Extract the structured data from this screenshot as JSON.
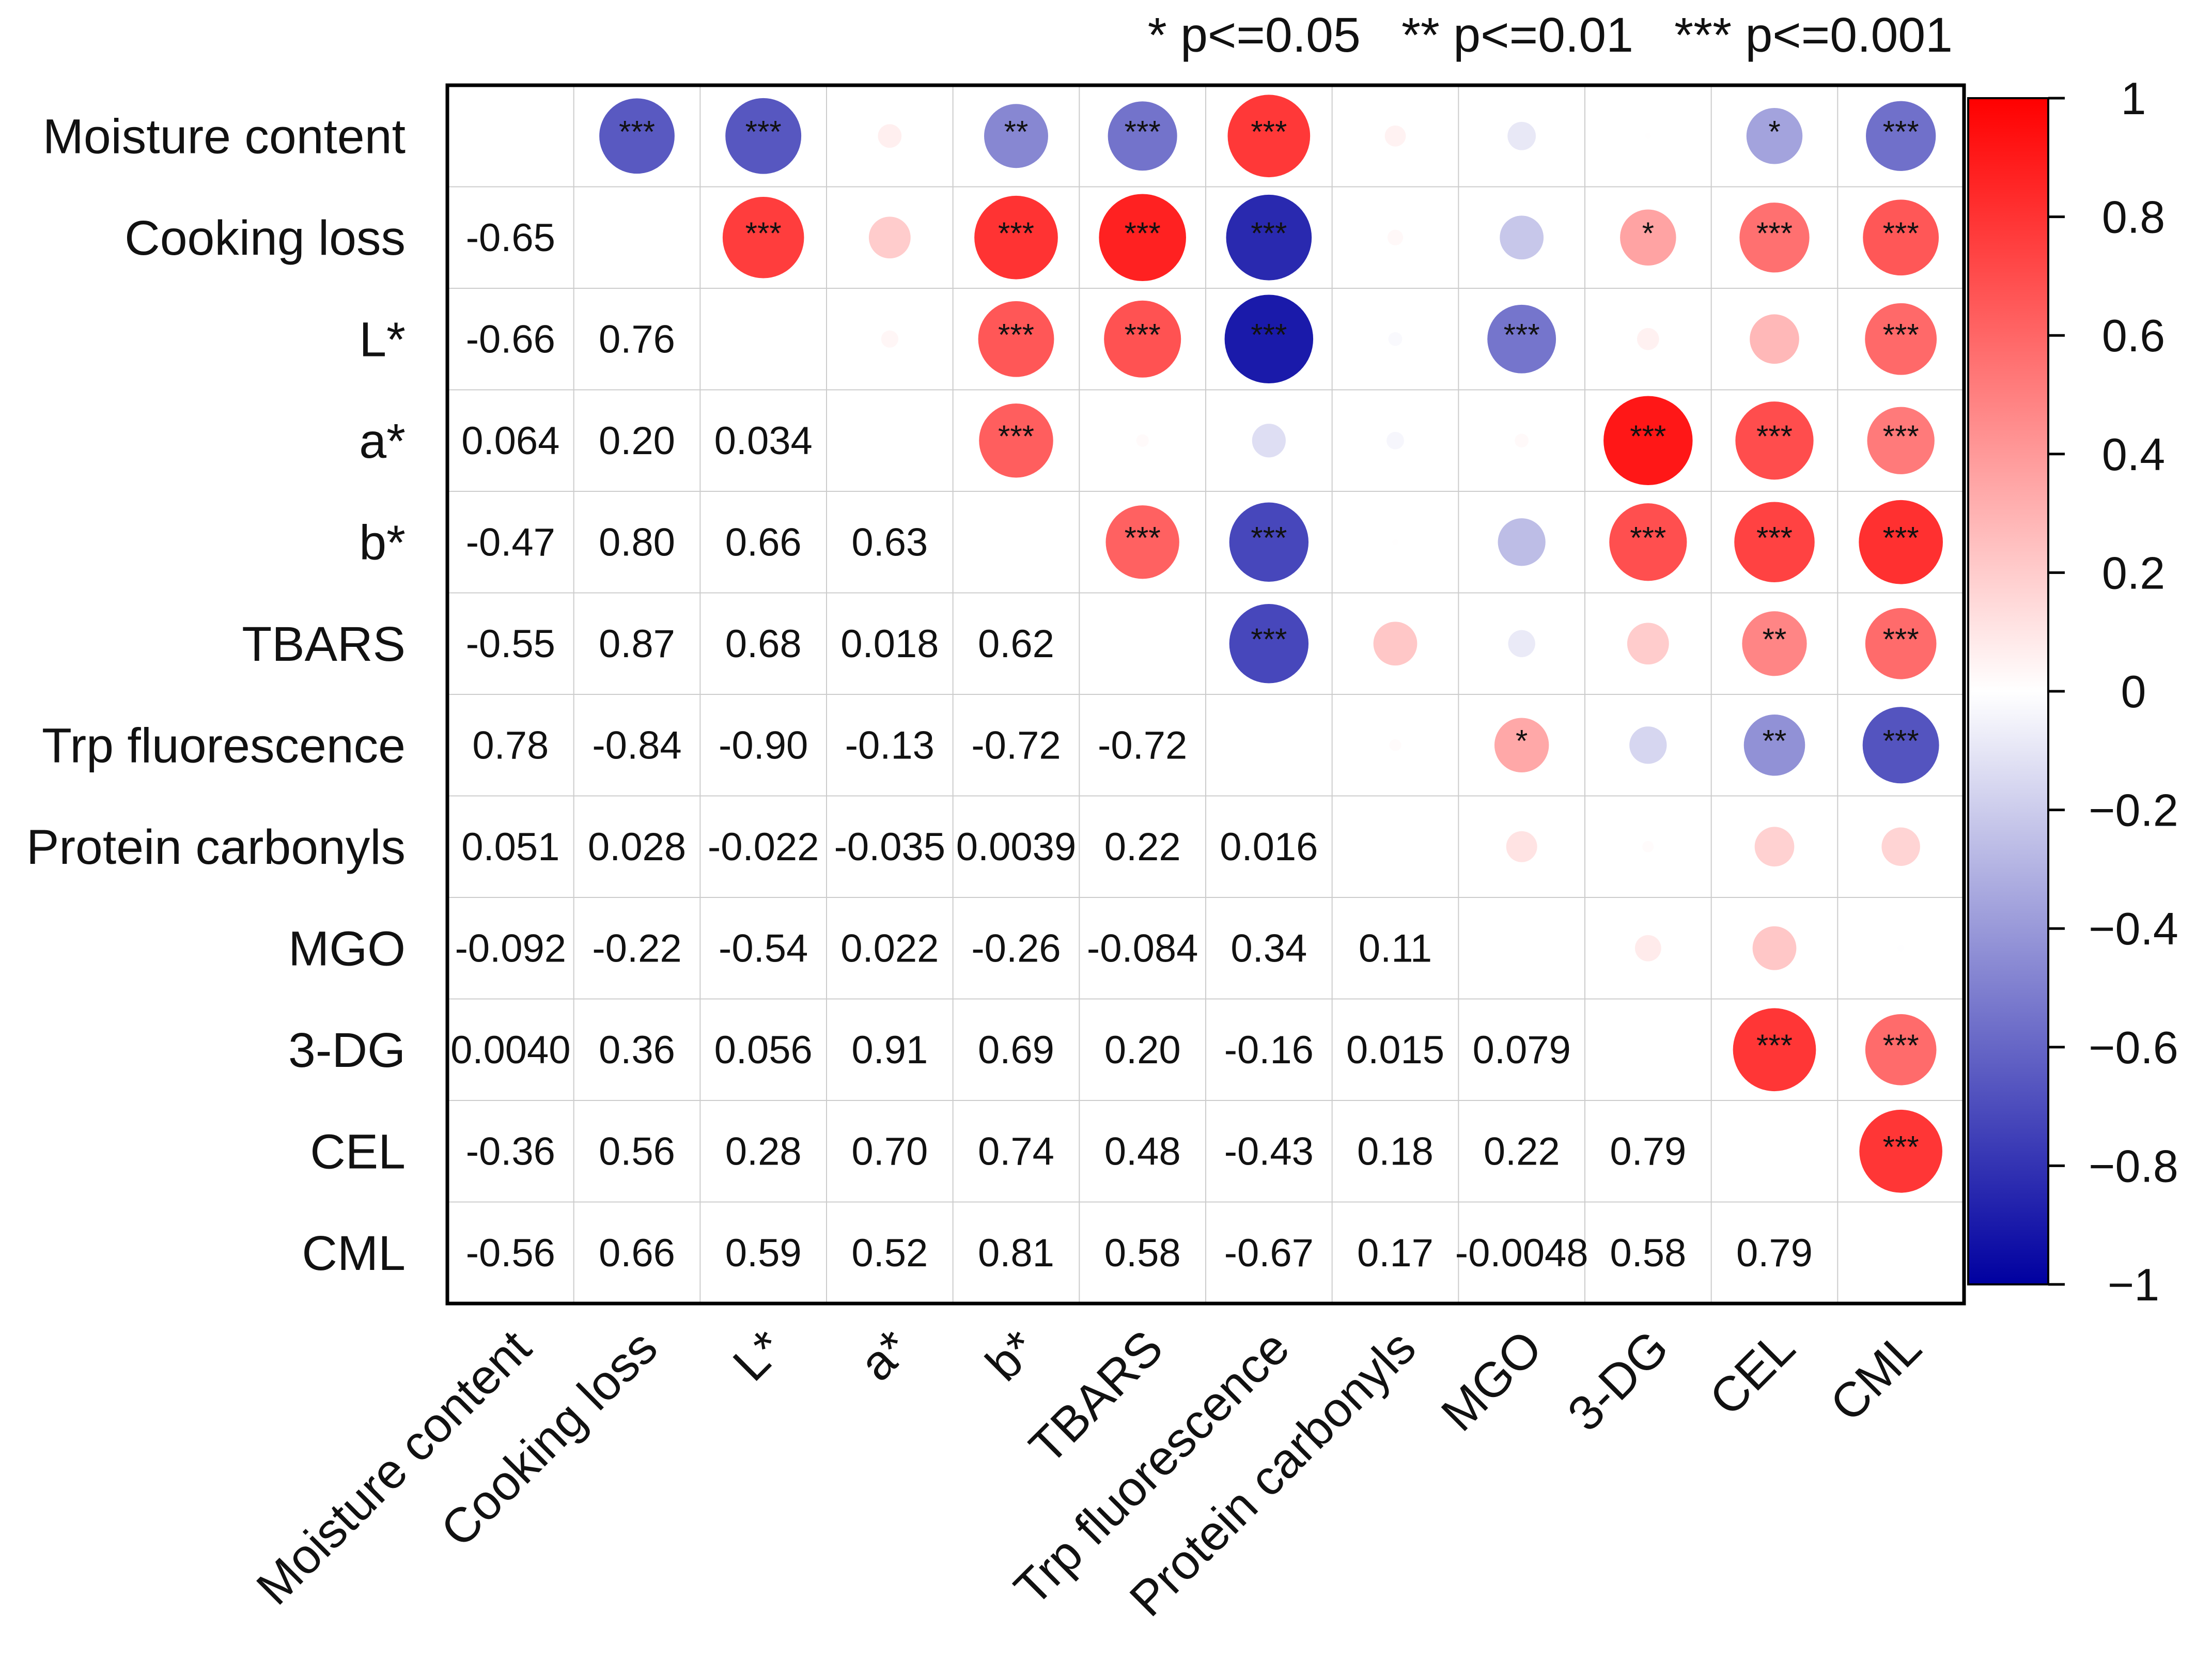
{
  "chart_data": {
    "type": "heatmap",
    "subtype": "correlation-matrix",
    "significance_legend": "* p<=0.05   ** p<=0.01   *** p<=0.001",
    "variables": [
      "Moisture content",
      "Cooking loss",
      "L*",
      "a*",
      "b*",
      "TBARS",
      "Trp fluorescence",
      "Protein carbonyls",
      "MGO",
      "3-DG",
      "CEL",
      "CML"
    ],
    "lower_triangle": [
      [],
      [
        -0.65
      ],
      [
        -0.66,
        0.76
      ],
      [
        0.064,
        0.2,
        0.034
      ],
      [
        -0.47,
        0.8,
        0.66,
        0.63
      ],
      [
        -0.55,
        0.87,
        0.68,
        0.018,
        0.62
      ],
      [
        0.78,
        -0.84,
        -0.9,
        -0.13,
        -0.72,
        -0.72
      ],
      [
        0.051,
        0.028,
        -0.022,
        -0.035,
        0.0039,
        0.22,
        0.016
      ],
      [
        -0.092,
        -0.22,
        -0.54,
        0.022,
        -0.26,
        -0.084,
        0.34,
        0.11
      ],
      [
        0.004,
        0.36,
        0.056,
        0.91,
        0.69,
        0.2,
        -0.16,
        0.015,
        0.079
      ],
      [
        -0.36,
        0.56,
        0.28,
        0.7,
        0.74,
        0.48,
        -0.43,
        0.18,
        0.22,
        0.79
      ],
      [
        -0.56,
        0.66,
        0.59,
        0.52,
        0.81,
        0.58,
        -0.67,
        0.17,
        -0.0048,
        0.58,
        0.79
      ]
    ],
    "lower_triangle_labels": [
      [],
      [
        "-0.65"
      ],
      [
        "-0.66",
        "0.76"
      ],
      [
        "0.064",
        "0.20",
        "0.034"
      ],
      [
        "-0.47",
        "0.80",
        "0.66",
        "0.63"
      ],
      [
        "-0.55",
        "0.87",
        "0.68",
        "0.018",
        "0.62"
      ],
      [
        "0.78",
        "-0.84",
        "-0.90",
        "-0.13",
        "-0.72",
        "-0.72"
      ],
      [
        "0.051",
        "0.028",
        "-0.022",
        "-0.035",
        "0.0039",
        "0.22",
        "0.016"
      ],
      [
        "-0.092",
        "-0.22",
        "-0.54",
        "0.022",
        "-0.26",
        "-0.084",
        "0.34",
        "0.11"
      ],
      [
        "0.0040",
        "0.36",
        "0.056",
        "0.91",
        "0.69",
        "0.20",
        "-0.16",
        "0.015",
        "0.079"
      ],
      [
        "-0.36",
        "0.56",
        "0.28",
        "0.70",
        "0.74",
        "0.48",
        "-0.43",
        "0.18",
        "0.22",
        "0.79"
      ],
      [
        "-0.56",
        "0.66",
        "0.59",
        "0.52",
        "0.81",
        "0.58",
        "-0.67",
        "0.17",
        "-0.0048",
        "0.58",
        "0.79"
      ]
    ],
    "upper_significance": [
      [
        "",
        "***",
        "***",
        "",
        "**",
        "***",
        "***",
        "",
        "",
        "",
        "*",
        "***"
      ],
      [
        "",
        "",
        "***",
        "",
        "***",
        "***",
        "***",
        "",
        "",
        "*",
        "***",
        "***"
      ],
      [
        "",
        "",
        "",
        "",
        "***",
        "***",
        "***",
        "",
        "***",
        "",
        "",
        "***"
      ],
      [
        "",
        "",
        "",
        "",
        "***",
        "",
        "",
        "",
        "",
        "***",
        "***",
        "***"
      ],
      [
        "",
        "",
        "",
        "",
        "",
        "***",
        "***",
        "",
        "",
        "***",
        "***",
        "***"
      ],
      [
        "",
        "",
        "",
        "",
        "",
        "",
        "***",
        "",
        "",
        "",
        "**",
        "***"
      ],
      [
        "",
        "",
        "",
        "",
        "",
        "",
        "",
        "",
        "*",
        "",
        "**",
        "***"
      ],
      [
        "",
        "",
        "",
        "",
        "",
        "",
        "",
        "",
        "",
        "",
        "",
        ""
      ],
      [
        "",
        "",
        "",
        "",
        "",
        "",
        "",
        "",
        "",
        "",
        "",
        ""
      ],
      [
        "",
        "",
        "",
        "",
        "",
        "",
        "",
        "",
        "",
        "",
        "***",
        "***"
      ],
      [
        "",
        "",
        "",
        "",
        "",
        "",
        "",
        "",
        "",
        "",
        "",
        "***"
      ],
      [
        "",
        "",
        "",
        "",
        "",
        "",
        "",
        "",
        "",
        "",
        "",
        ""
      ]
    ],
    "colorbar": {
      "min": -1,
      "max": 1,
      "ticks": [
        1,
        0.8,
        0.6,
        0.4,
        0.2,
        0,
        -0.2,
        -0.4,
        -0.6,
        -0.8,
        -1
      ],
      "tick_labels": [
        "1",
        "0.8",
        "0.6",
        "0.4",
        "0.2",
        "0",
        "−0.2",
        "−0.4",
        "−0.6",
        "−0.8",
        "−1"
      ]
    },
    "colors": {
      "negative": "#0000a0",
      "zero": "#ffffff",
      "positive": "#ff0000",
      "grid": "#cccccc",
      "frame": "#000000"
    }
  }
}
